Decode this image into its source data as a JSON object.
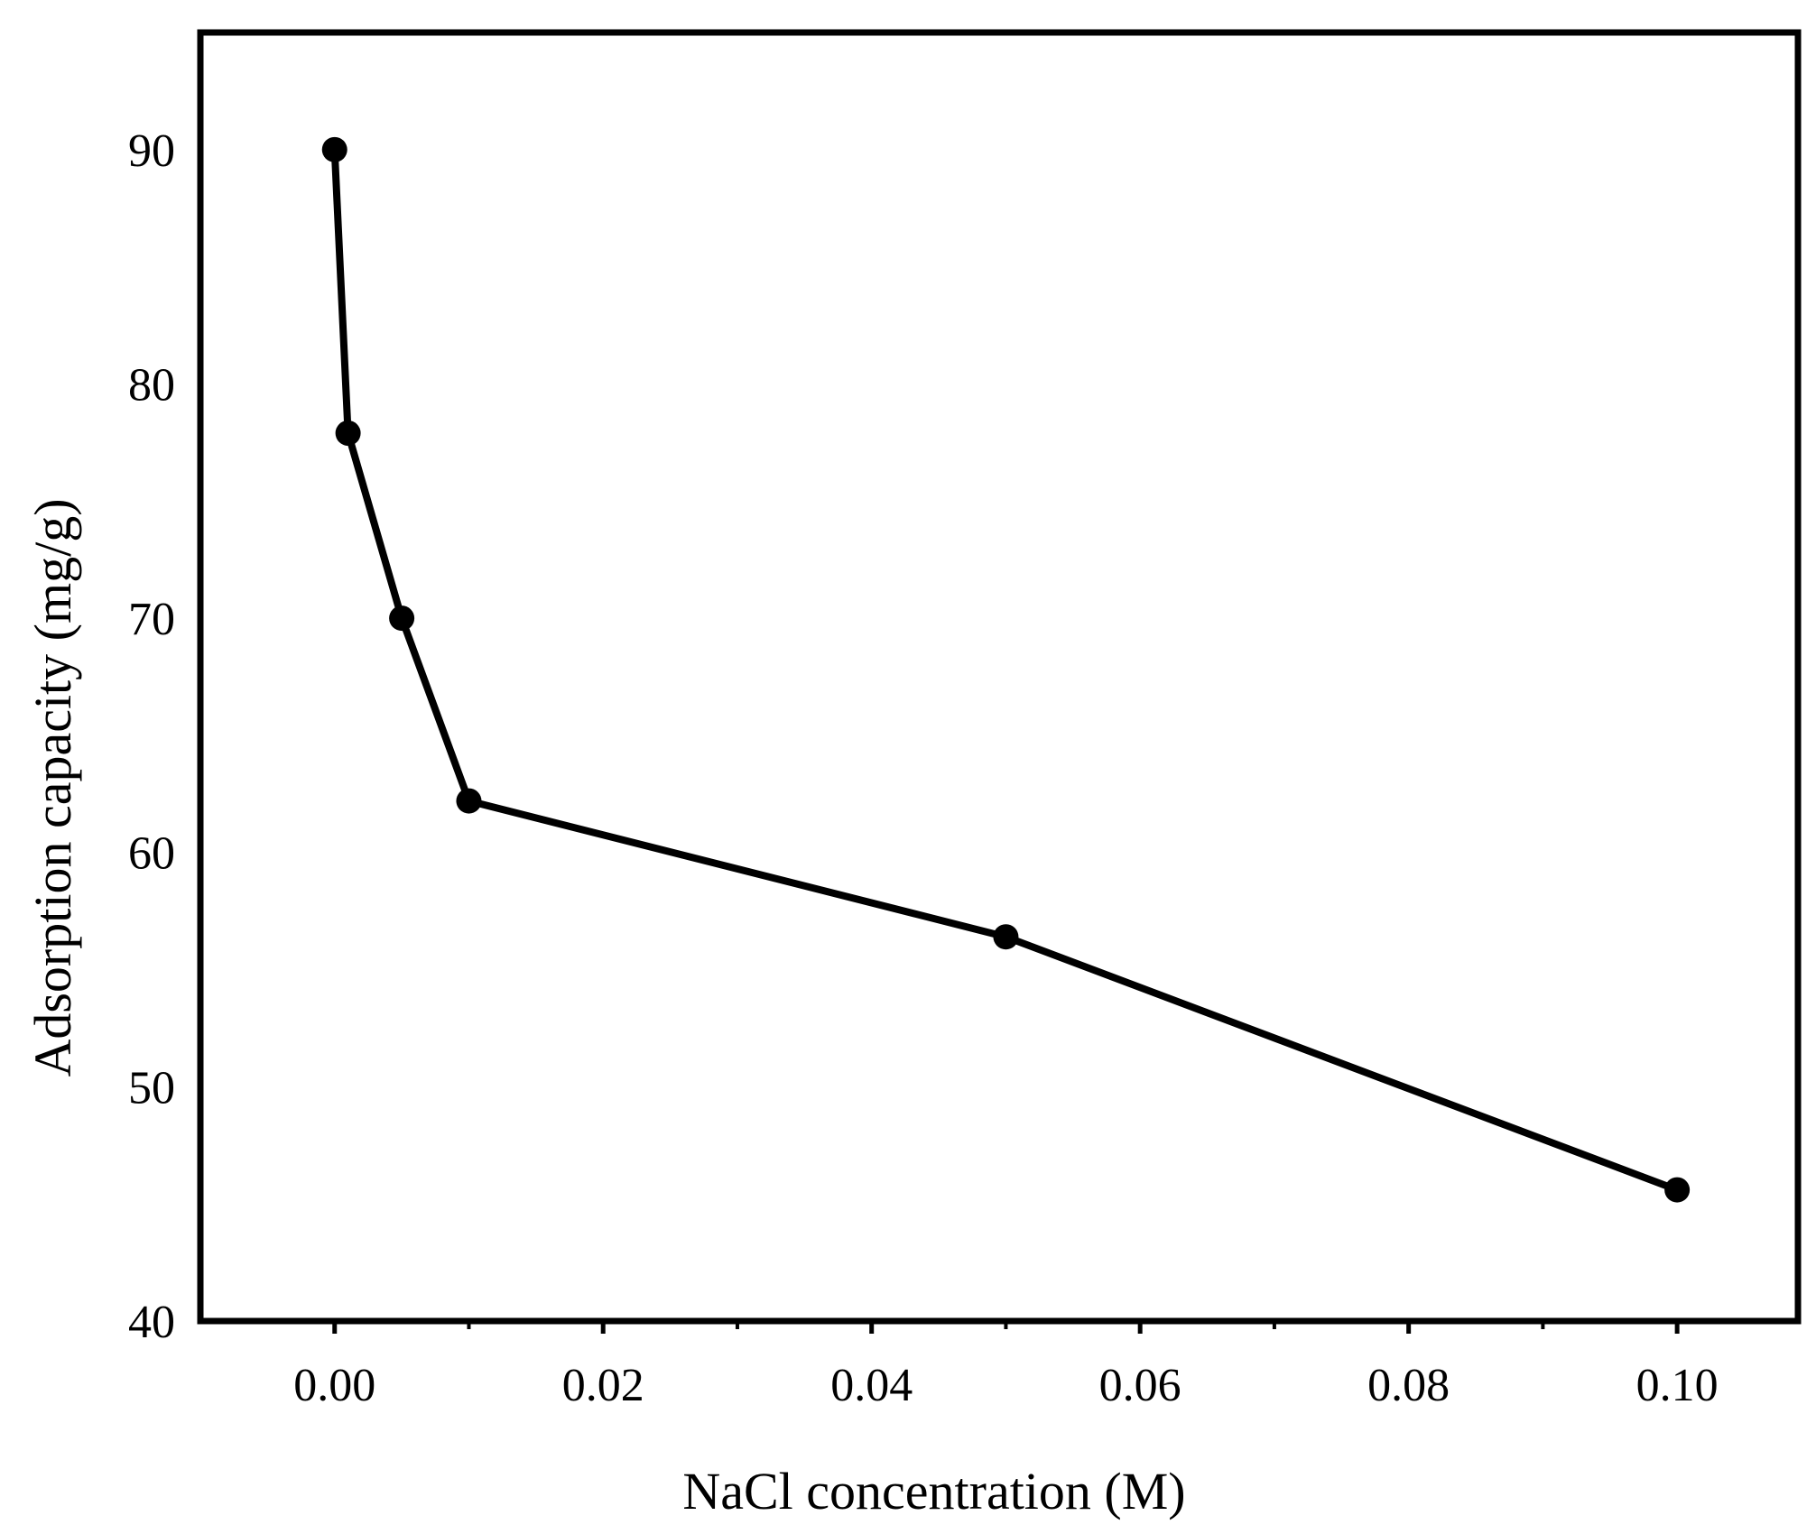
{
  "chart_data": {
    "type": "line",
    "title": "",
    "xlabel": "NaCl concentration (M)",
    "ylabel": "Adsorption capacity (mg/g)",
    "xlim": [
      -0.01,
      0.109
    ],
    "ylim": [
      40,
      95
    ],
    "xticks": [
      "0.00",
      "0.02",
      "0.04",
      "0.06",
      "0.08",
      "0.10"
    ],
    "yticks": [
      "40",
      "50",
      "60",
      "70",
      "80",
      "90"
    ],
    "grid": false,
    "legend": "none",
    "series": [
      {
        "x": [
          0.0,
          0.001,
          0.005,
          0.01,
          0.05,
          0.1
        ],
        "y": [
          90.0,
          77.9,
          70.0,
          62.2,
          56.4,
          45.6
        ],
        "color": "#000000",
        "marker": "circle"
      }
    ]
  }
}
